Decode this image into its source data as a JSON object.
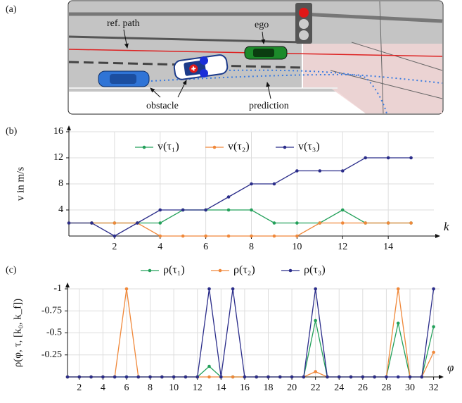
{
  "panel_labels": [
    "(a)",
    "(b)",
    "(c)"
  ],
  "illustration": {
    "ref_path": "ref. path",
    "ego": "ego",
    "obstacle": "obstacle",
    "prediction": "prediction"
  },
  "chart_data": [
    {
      "type": "line",
      "xlabel": "k",
      "ylabel": "v in m/s",
      "x": [
        0,
        1,
        2,
        3,
        4,
        5,
        6,
        7,
        8,
        9,
        10,
        11,
        12,
        13,
        14,
        15
      ],
      "xlim": [
        0,
        16
      ],
      "xticks": [
        2,
        4,
        6,
        8,
        10,
        12,
        14
      ],
      "ylim": [
        0,
        16
      ],
      "yticks": [
        4,
        8,
        12,
        16
      ],
      "grid": true,
      "series": [
        {
          "name": "v(τ₁)",
          "color": "#23a05a",
          "values": [
            2,
            2,
            2,
            2,
            2,
            4,
            4,
            4,
            4,
            2,
            2,
            2,
            4,
            2,
            2,
            2
          ]
        },
        {
          "name": "v(τ₂)",
          "color": "#f0883a",
          "values": [
            2,
            2,
            2,
            2,
            0,
            0,
            0,
            0,
            0,
            0,
            0,
            2,
            2,
            2,
            2,
            2
          ]
        },
        {
          "name": "v(τ₃)",
          "color": "#2b2d8a",
          "values": [
            2,
            2,
            0,
            2,
            4,
            4,
            4,
            6,
            8,
            8,
            10,
            10,
            10,
            12,
            12,
            12
          ]
        }
      ]
    },
    {
      "type": "line",
      "xlabel": "φ",
      "ylabel": "ρ(φ, τ, [k₀, k_f])",
      "x": [
        1,
        2,
        3,
        4,
        5,
        6,
        7,
        8,
        9,
        10,
        11,
        12,
        13,
        14,
        15,
        16,
        17,
        18,
        19,
        20,
        21,
        22,
        23,
        24,
        25,
        26,
        27,
        28,
        29,
        30,
        31,
        32
      ],
      "xlim": [
        1,
        32.5
      ],
      "xticks": [
        2,
        4,
        6,
        8,
        10,
        12,
        14,
        16,
        18,
        20,
        22,
        24,
        26,
        28,
        30,
        32
      ],
      "ylim": [
        0,
        -1
      ],
      "yticks": [
        -1,
        -0.75,
        -0.5,
        -0.25
      ],
      "grid": true,
      "series": [
        {
          "name": "ρ(τ₁)",
          "color": "#23a05a",
          "values": [
            0,
            0,
            0,
            0,
            0,
            0,
            0,
            0,
            0,
            0,
            0,
            0,
            -0.12,
            0,
            0,
            0,
            0,
            0,
            0,
            0,
            0,
            -0.64,
            0,
            0,
            0,
            0,
            0,
            0,
            -0.61,
            0,
            0,
            -0.57
          ]
        },
        {
          "name": "ρ(τ₂)",
          "color": "#f0883a",
          "values": [
            0,
            0,
            0,
            0,
            0,
            -1,
            0,
            0,
            0,
            0,
            0,
            0,
            0,
            0,
            0,
            0,
            0,
            0,
            0,
            0,
            0,
            -0.06,
            0,
            0,
            0,
            0,
            0,
            0,
            -1,
            0,
            0,
            -0.28
          ]
        },
        {
          "name": "ρ(τ₃)",
          "color": "#2b2d8a",
          "values": [
            0,
            0,
            0,
            0,
            0,
            0,
            0,
            0,
            0,
            0,
            0,
            0,
            -1,
            0,
            -1,
            0,
            0,
            0,
            0,
            0,
            0,
            -1,
            0,
            0,
            0,
            0,
            0,
            0,
            0,
            0,
            0,
            -1
          ]
        }
      ]
    }
  ]
}
